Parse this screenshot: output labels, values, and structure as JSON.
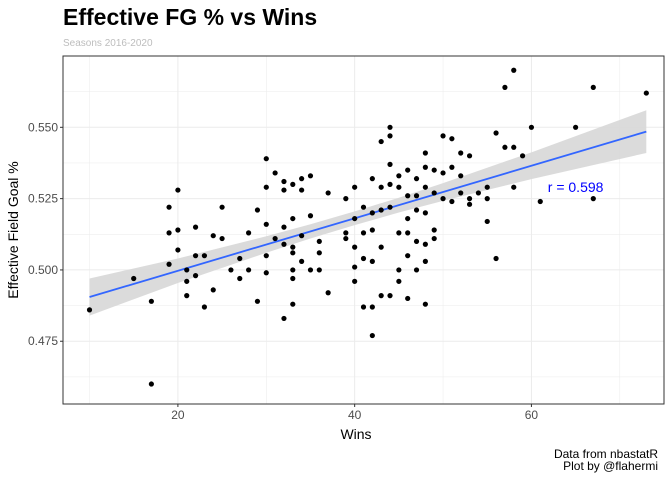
{
  "title": "Effective FG % vs Wins",
  "subtitle": "Seasons 2016-2020",
  "caption_line1": "Data from nbastatR",
  "caption_line2": "Plot by @flahermi",
  "colors": {
    "points": "#000000",
    "trend": "#3366ff",
    "band": "#d9d9d9",
    "annotation": "#0000ff",
    "panel_border": "#333333",
    "grid": "#ebebeb"
  },
  "chart_data": {
    "type": "scatter",
    "xlabel": "Wins",
    "ylabel": "Effective Field Goal %",
    "xlim": [
      7,
      75
    ],
    "ylim": [
      0.453,
      0.575
    ],
    "xticks": [
      20,
      40,
      60
    ],
    "xtick_labels": [
      "20",
      "40",
      "60"
    ],
    "yticks": [
      0.475,
      0.5,
      0.525,
      0.55
    ],
    "ytick_labels": [
      "0.475",
      "0.500",
      "0.525",
      "0.550"
    ],
    "grid": true,
    "annotation": "r =  0.598",
    "annotation_pos": {
      "x": 65,
      "y": 0.529
    },
    "trend": {
      "x1": 10,
      "y1": 0.4905,
      "x2": 73,
      "y2": 0.5485
    },
    "band_halfwidth": {
      "x": [
        10,
        20,
        30,
        35,
        40,
        45,
        50,
        60,
        73
      ],
      "hw": [
        0.0065,
        0.0043,
        0.0029,
        0.0025,
        0.0024,
        0.0026,
        0.0031,
        0.0047,
        0.0075
      ]
    },
    "points": [
      [
        10,
        0.486
      ],
      [
        15,
        0.497
      ],
      [
        17,
        0.46
      ],
      [
        17,
        0.489
      ],
      [
        19,
        0.522
      ],
      [
        19,
        0.513
      ],
      [
        19,
        0.502
      ],
      [
        20,
        0.528
      ],
      [
        20,
        0.514
      ],
      [
        20,
        0.507
      ],
      [
        21,
        0.5
      ],
      [
        21,
        0.496
      ],
      [
        21,
        0.491
      ],
      [
        22,
        0.515
      ],
      [
        22,
        0.505
      ],
      [
        22,
        0.498
      ],
      [
        23,
        0.505
      ],
      [
        23,
        0.487
      ],
      [
        24,
        0.512
      ],
      [
        24,
        0.493
      ],
      [
        25,
        0.522
      ],
      [
        25,
        0.511
      ],
      [
        26,
        0.5
      ],
      [
        27,
        0.504
      ],
      [
        27,
        0.497
      ],
      [
        28,
        0.513
      ],
      [
        28,
        0.5
      ],
      [
        29,
        0.521
      ],
      [
        29,
        0.489
      ],
      [
        30,
        0.539
      ],
      [
        30,
        0.529
      ],
      [
        30,
        0.516
      ],
      [
        30,
        0.505
      ],
      [
        30,
        0.499
      ],
      [
        31,
        0.534
      ],
      [
        31,
        0.511
      ],
      [
        32,
        0.531
      ],
      [
        32,
        0.528
      ],
      [
        32,
        0.515
      ],
      [
        32,
        0.509
      ],
      [
        32,
        0.483
      ],
      [
        33,
        0.53
      ],
      [
        33,
        0.518
      ],
      [
        33,
        0.508
      ],
      [
        33,
        0.506
      ],
      [
        33,
        0.5
      ],
      [
        33,
        0.497
      ],
      [
        33,
        0.488
      ],
      [
        34,
        0.532
      ],
      [
        34,
        0.528
      ],
      [
        34,
        0.512
      ],
      [
        34,
        0.503
      ],
      [
        35,
        0.533
      ],
      [
        35,
        0.519
      ],
      [
        35,
        0.5
      ],
      [
        36,
        0.51
      ],
      [
        36,
        0.506
      ],
      [
        36,
        0.5
      ],
      [
        37,
        0.527
      ],
      [
        37,
        0.492
      ],
      [
        39,
        0.525
      ],
      [
        39,
        0.513
      ],
      [
        39,
        0.511
      ],
      [
        40,
        0.529
      ],
      [
        40,
        0.518
      ],
      [
        40,
        0.508
      ],
      [
        40,
        0.501
      ],
      [
        40,
        0.496
      ],
      [
        41,
        0.522
      ],
      [
        41,
        0.513
      ],
      [
        41,
        0.504
      ],
      [
        41,
        0.487
      ],
      [
        42,
        0.532
      ],
      [
        42,
        0.52
      ],
      [
        42,
        0.514
      ],
      [
        42,
        0.503
      ],
      [
        42,
        0.487
      ],
      [
        42,
        0.477
      ],
      [
        43,
        0.545
      ],
      [
        43,
        0.529
      ],
      [
        43,
        0.521
      ],
      [
        43,
        0.508
      ],
      [
        43,
        0.491
      ],
      [
        44,
        0.55
      ],
      [
        44,
        0.547
      ],
      [
        44,
        0.537
      ],
      [
        44,
        0.53
      ],
      [
        44,
        0.522
      ],
      [
        44,
        0.491
      ],
      [
        45,
        0.533
      ],
      [
        45,
        0.529
      ],
      [
        45,
        0.513
      ],
      [
        45,
        0.5
      ],
      [
        45,
        0.496
      ],
      [
        46,
        0.535
      ],
      [
        46,
        0.526
      ],
      [
        46,
        0.518
      ],
      [
        46,
        0.513
      ],
      [
        46,
        0.505
      ],
      [
        46,
        0.49
      ],
      [
        47,
        0.532
      ],
      [
        47,
        0.526
      ],
      [
        47,
        0.521
      ],
      [
        47,
        0.51
      ],
      [
        47,
        0.5
      ],
      [
        48,
        0.541
      ],
      [
        48,
        0.536
      ],
      [
        48,
        0.529
      ],
      [
        48,
        0.52
      ],
      [
        48,
        0.509
      ],
      [
        48,
        0.503
      ],
      [
        48,
        0.488
      ],
      [
        49,
        0.535
      ],
      [
        49,
        0.527
      ],
      [
        49,
        0.514
      ],
      [
        49,
        0.511
      ],
      [
        50,
        0.547
      ],
      [
        50,
        0.534
      ],
      [
        50,
        0.525
      ],
      [
        51,
        0.546
      ],
      [
        51,
        0.536
      ],
      [
        51,
        0.524
      ],
      [
        52,
        0.541
      ],
      [
        52,
        0.533
      ],
      [
        52,
        0.527
      ],
      [
        53,
        0.54
      ],
      [
        53,
        0.525
      ],
      [
        53,
        0.523
      ],
      [
        54,
        0.527
      ],
      [
        55,
        0.529
      ],
      [
        55,
        0.525
      ],
      [
        55,
        0.517
      ],
      [
        56,
        0.548
      ],
      [
        56,
        0.504
      ],
      [
        57,
        0.564
      ],
      [
        57,
        0.543
      ],
      [
        58,
        0.57
      ],
      [
        58,
        0.543
      ],
      [
        58,
        0.529
      ],
      [
        59,
        0.54
      ],
      [
        60,
        0.55
      ],
      [
        61,
        0.524
      ],
      [
        65,
        0.55
      ],
      [
        67,
        0.564
      ],
      [
        67,
        0.525
      ],
      [
        73,
        0.562
      ]
    ]
  }
}
